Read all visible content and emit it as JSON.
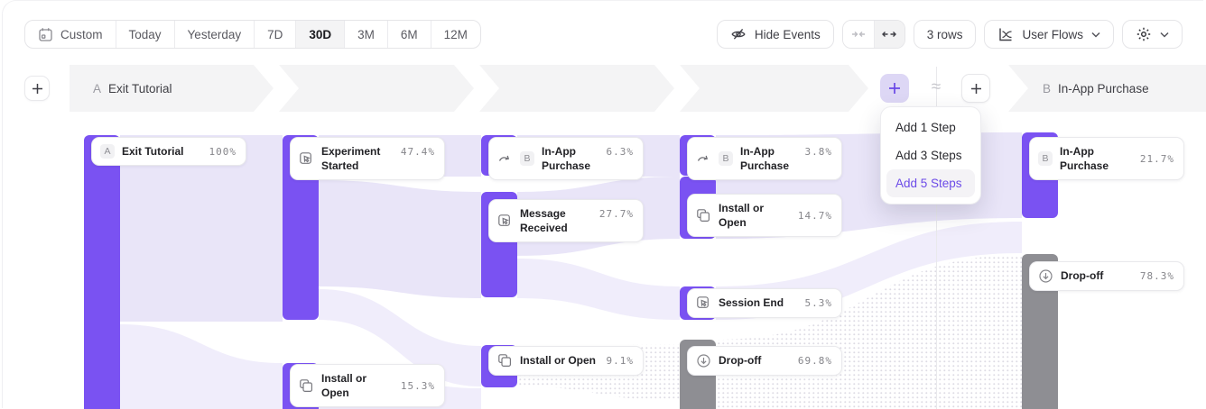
{
  "toolbar": {
    "date_ranges": [
      {
        "label": "Custom",
        "icon": "calendar",
        "selected": false
      },
      {
        "label": "Today",
        "selected": false
      },
      {
        "label": "Yesterday",
        "selected": false
      },
      {
        "label": "7D",
        "selected": false
      },
      {
        "label": "30D",
        "selected": true
      },
      {
        "label": "3M",
        "selected": false
      },
      {
        "label": "6M",
        "selected": false
      },
      {
        "label": "12M",
        "selected": false
      }
    ],
    "hide_events_label": "Hide Events",
    "rows_label": "3 rows",
    "view_selector_label": "User Flows"
  },
  "flow_header": {
    "start_letter": "A",
    "start_label": "Exit Tutorial",
    "end_letter": "B",
    "end_label": "In-App Purchase",
    "approx_symbol": "≈"
  },
  "add_step_menu": {
    "items": [
      {
        "label": "Add 1 Step",
        "highlighted": false
      },
      {
        "label": "Add 3 Steps",
        "highlighted": false
      },
      {
        "label": "Add 5 Steps",
        "highlighted": true
      }
    ]
  },
  "flow_nodes": [
    {
      "id": "exit-tutorial",
      "badge": "A",
      "label": "Exit Tutorial",
      "pct": "100%",
      "kind": "purple"
    },
    {
      "id": "experiment-started",
      "icon": "event",
      "label": "Experiment Started",
      "pct": "47.4%",
      "kind": "purple"
    },
    {
      "id": "install-or-open-1",
      "icon": "install",
      "label": "Install or Open",
      "pct": "15.3%",
      "kind": "purple"
    },
    {
      "id": "in-app-purchase-1",
      "icon": "purchase",
      "badge": "B",
      "label": "In-App Purchase",
      "pct": "6.3%",
      "kind": "purple"
    },
    {
      "id": "message-received",
      "icon": "event",
      "label": "Message Received",
      "pct": "27.7%",
      "kind": "purple"
    },
    {
      "id": "install-or-open-2",
      "icon": "install",
      "label": "Install or Open",
      "pct": "9.1%",
      "kind": "purple"
    },
    {
      "id": "in-app-purchase-2",
      "icon": "purchase",
      "badge": "B",
      "label": "In-App Purchase",
      "pct": "3.8%",
      "kind": "purple"
    },
    {
      "id": "install-or-open-3",
      "icon": "install",
      "label": "Install or Open",
      "pct": "14.7%",
      "kind": "purple"
    },
    {
      "id": "session-end",
      "icon": "event",
      "label": "Session End",
      "pct": "5.3%",
      "kind": "purple"
    },
    {
      "id": "drop-off-1",
      "icon": "dropoff",
      "label": "Drop-off",
      "pct": "69.8%",
      "kind": "gray"
    },
    {
      "id": "in-app-purchase-3",
      "badge": "B",
      "label": "In-App Purchase",
      "pct": "21.7%",
      "kind": "purple"
    },
    {
      "id": "drop-off-2",
      "icon": "dropoff",
      "label": "Drop-off",
      "pct": "78.3%",
      "kind": "gray"
    }
  ],
  "colors": {
    "accent_purple": "#7A52F2",
    "link_light_purple": "#E9E5F8",
    "link_lighter_purple": "#F0EDFB",
    "gray_bar": "#8E8E93",
    "menu_highlight_text": "#6C4BE8"
  }
}
